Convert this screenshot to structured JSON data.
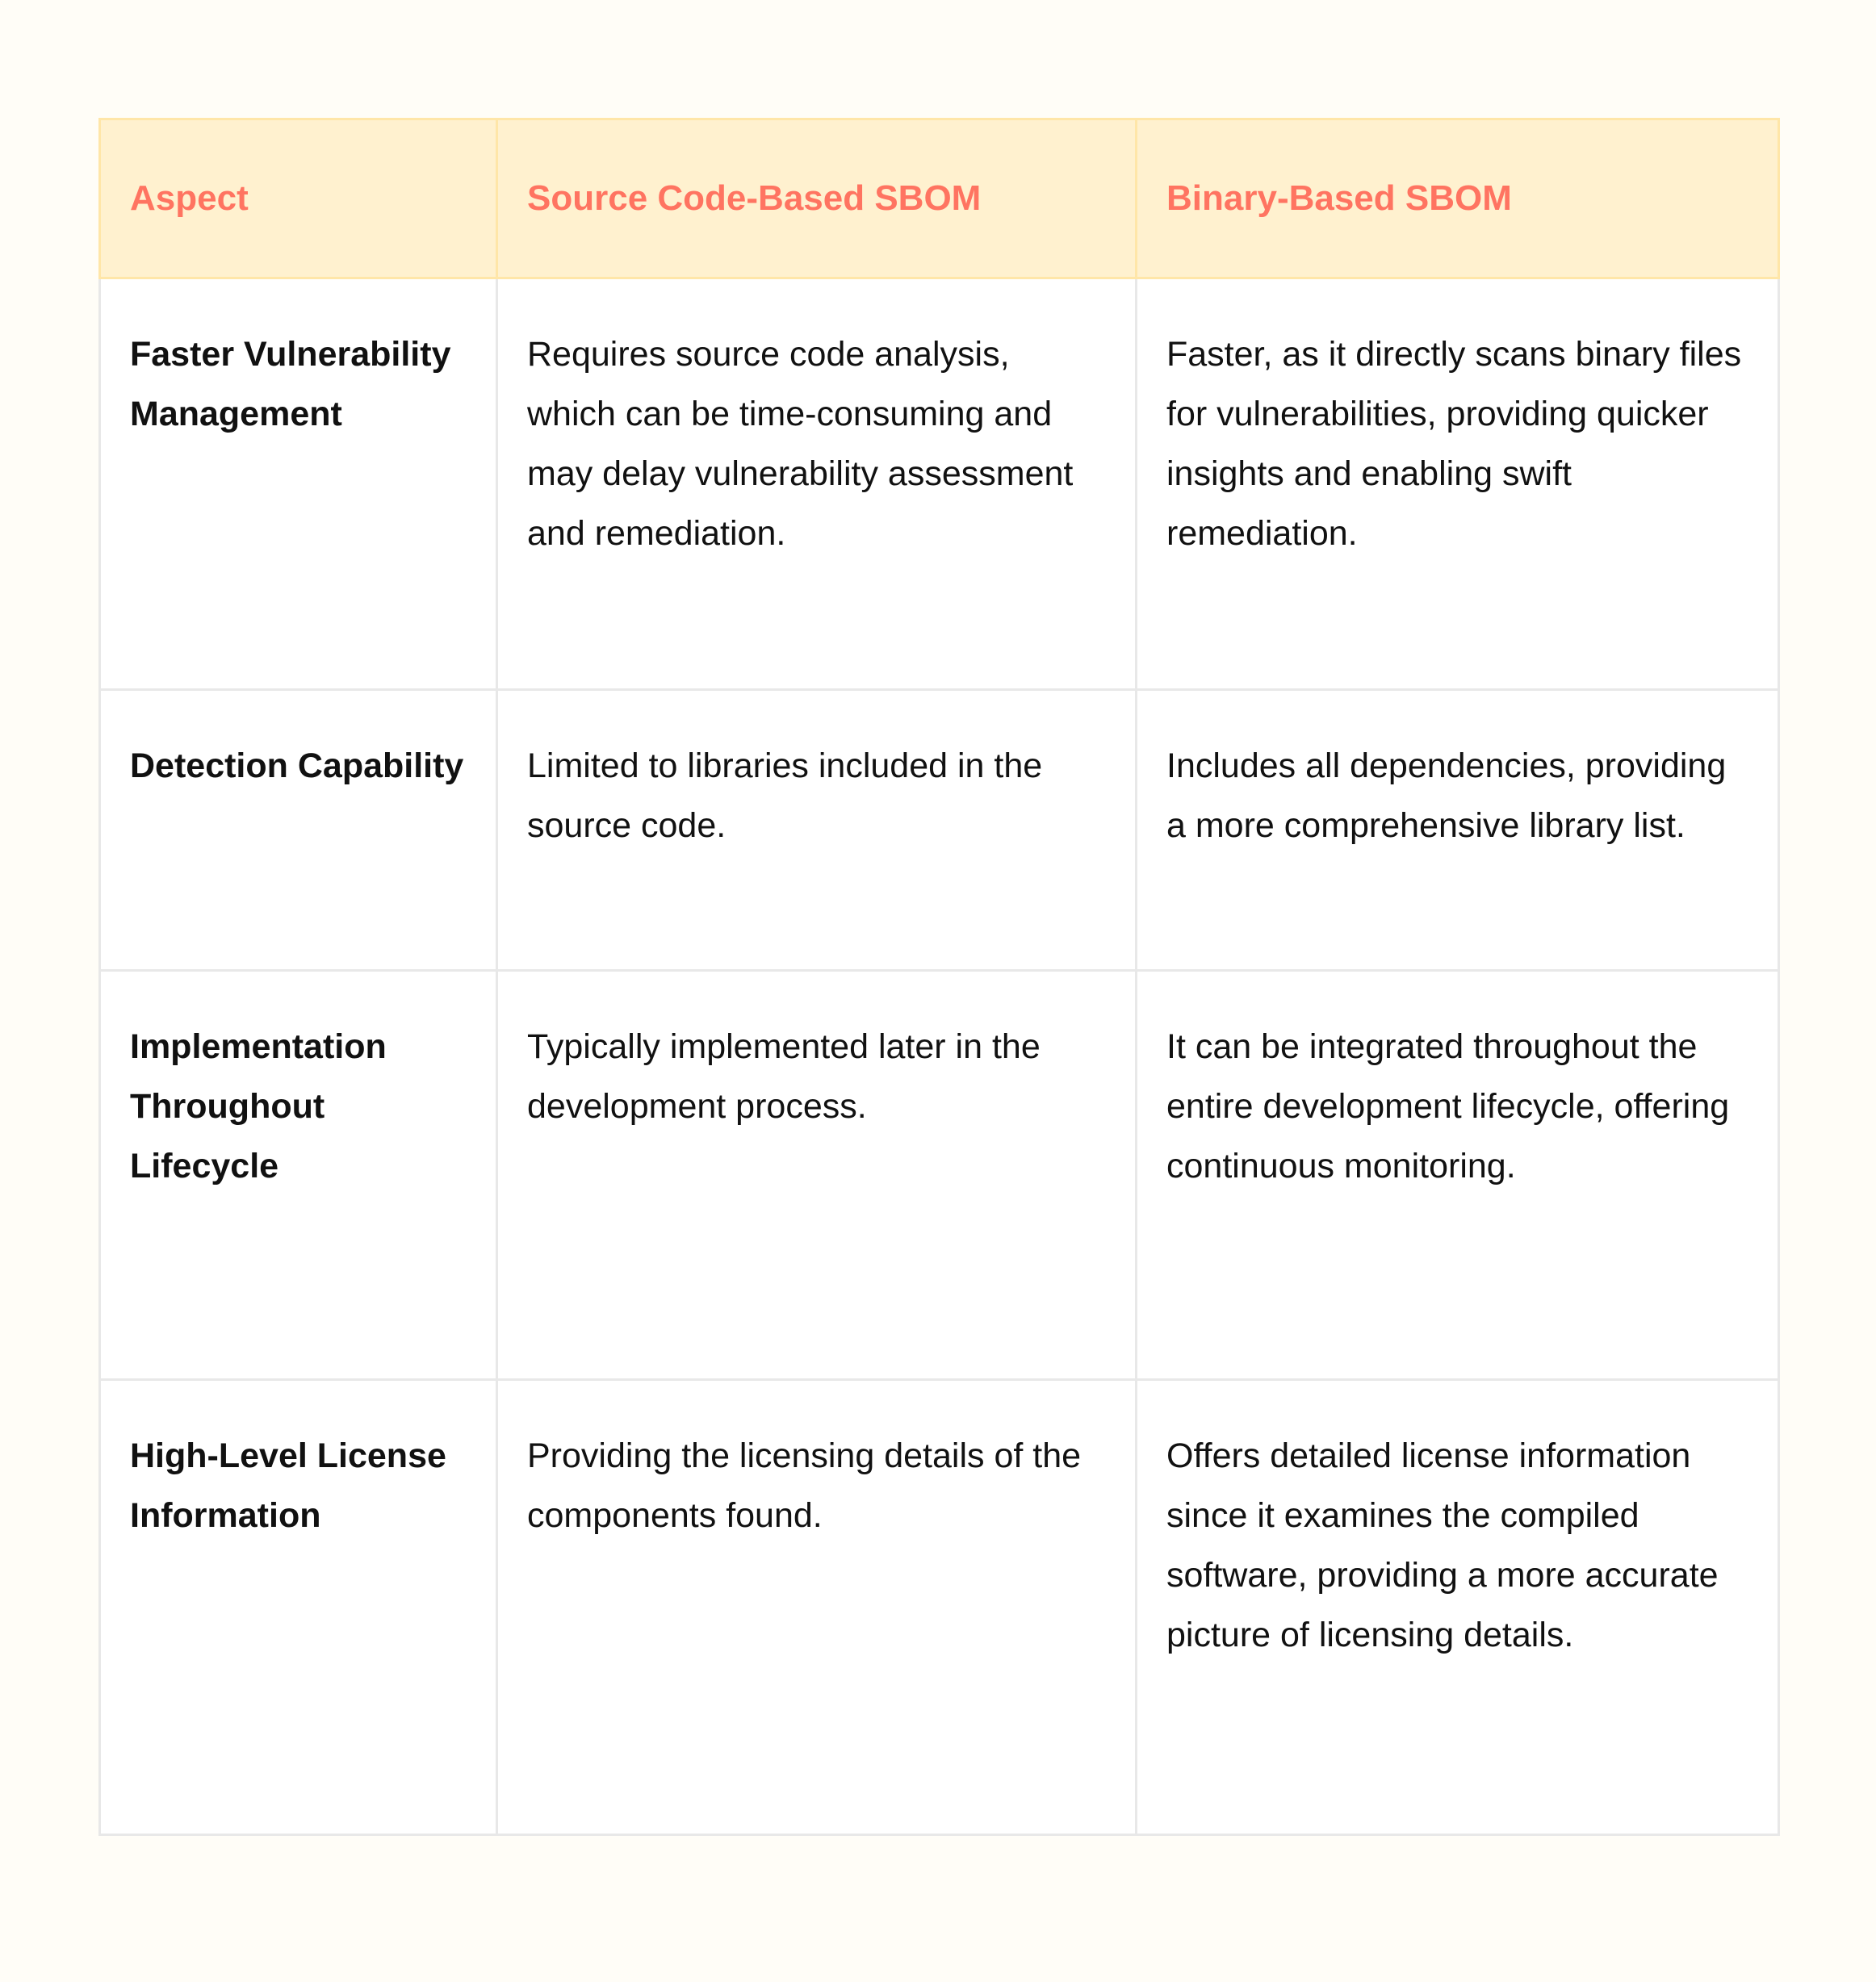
{
  "table": {
    "headers": [
      "Aspect",
      "Source Code-Based SBOM",
      "Binary-Based SBOM"
    ],
    "rows": [
      {
        "aspect": "Faster Vulnerability Management",
        "source": "Requires source code analysis, which can be time-consuming and may delay vulnerability assessment and remediation.",
        "binary": "Faster, as it directly scans binary files for vulnerabilities, providing quicker insights and enabling swift remediation."
      },
      {
        "aspect": "Detection Capability",
        "source": "Limited to libraries included in the source code.",
        "binary": "Includes all dependencies, providing a more comprehensive library list."
      },
      {
        "aspect": "Implementation Throughout Lifecycle",
        "source": "Typically implemented later in the development process.",
        "binary": "It can be integrated throughout the entire development lifecycle, offering continuous monitoring."
      },
      {
        "aspect": "High-Level License Information",
        "source": "Providing the licensing details of the components found.",
        "binary": "Offers detailed license information since it examines the compiled software, providing a more accurate picture of licensing details."
      }
    ]
  },
  "colors": {
    "header_bg": "#fff1cf",
    "header_text": "#ff7461",
    "background": "#fffdf7"
  }
}
